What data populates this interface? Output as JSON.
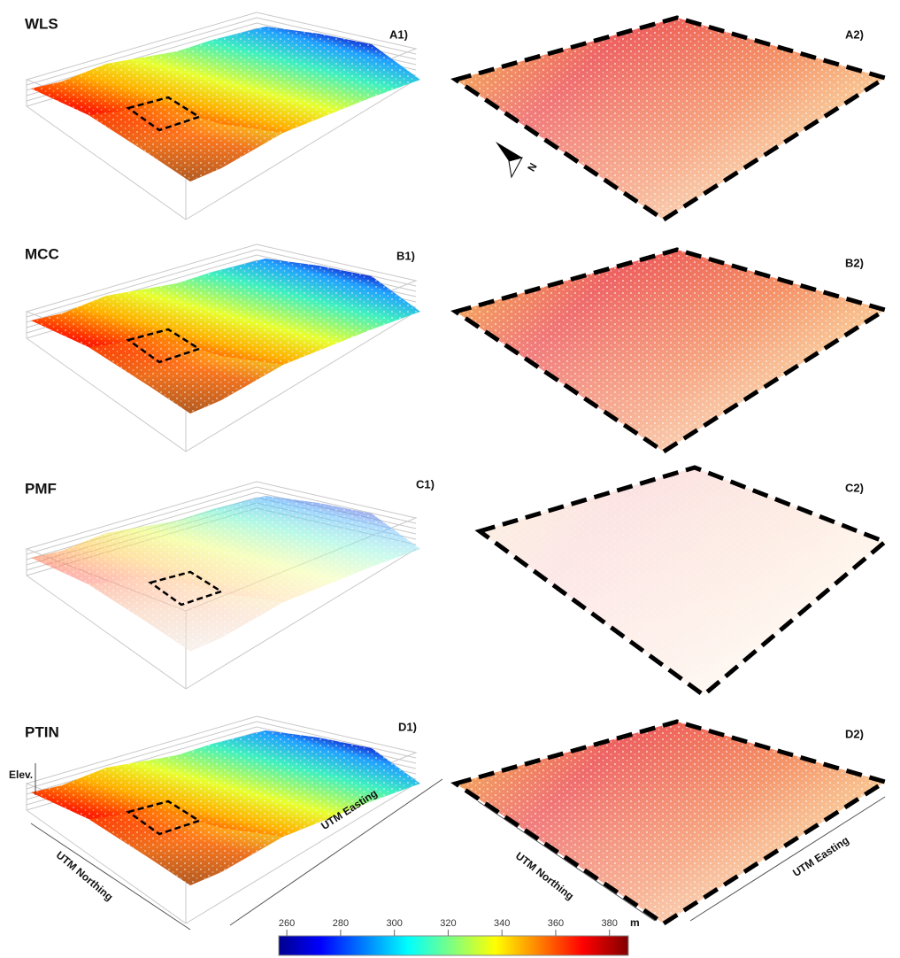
{
  "panels": [
    {
      "method": "WLS",
      "left_label": "A1)",
      "right_label": "A2)"
    },
    {
      "method": "MCC",
      "left_label": "B1)",
      "right_label": "B2)"
    },
    {
      "method": "PMF",
      "left_label": "C1)",
      "right_label": "C2)"
    },
    {
      "method": "PTIN",
      "left_label": "D1)",
      "right_label": "D2)"
    }
  ],
  "north_arrow": "N",
  "axes_left": {
    "z": "Elev.",
    "y": "UTM Northing",
    "x": "UTM Easting"
  },
  "axes_right": {
    "y": "UTM Northing",
    "x": "UTM Easting"
  },
  "colorbar": {
    "range": [
      257,
      387
    ],
    "ticks": [
      260,
      280,
      300,
      320,
      340,
      360,
      380
    ],
    "unit": "m"
  }
}
